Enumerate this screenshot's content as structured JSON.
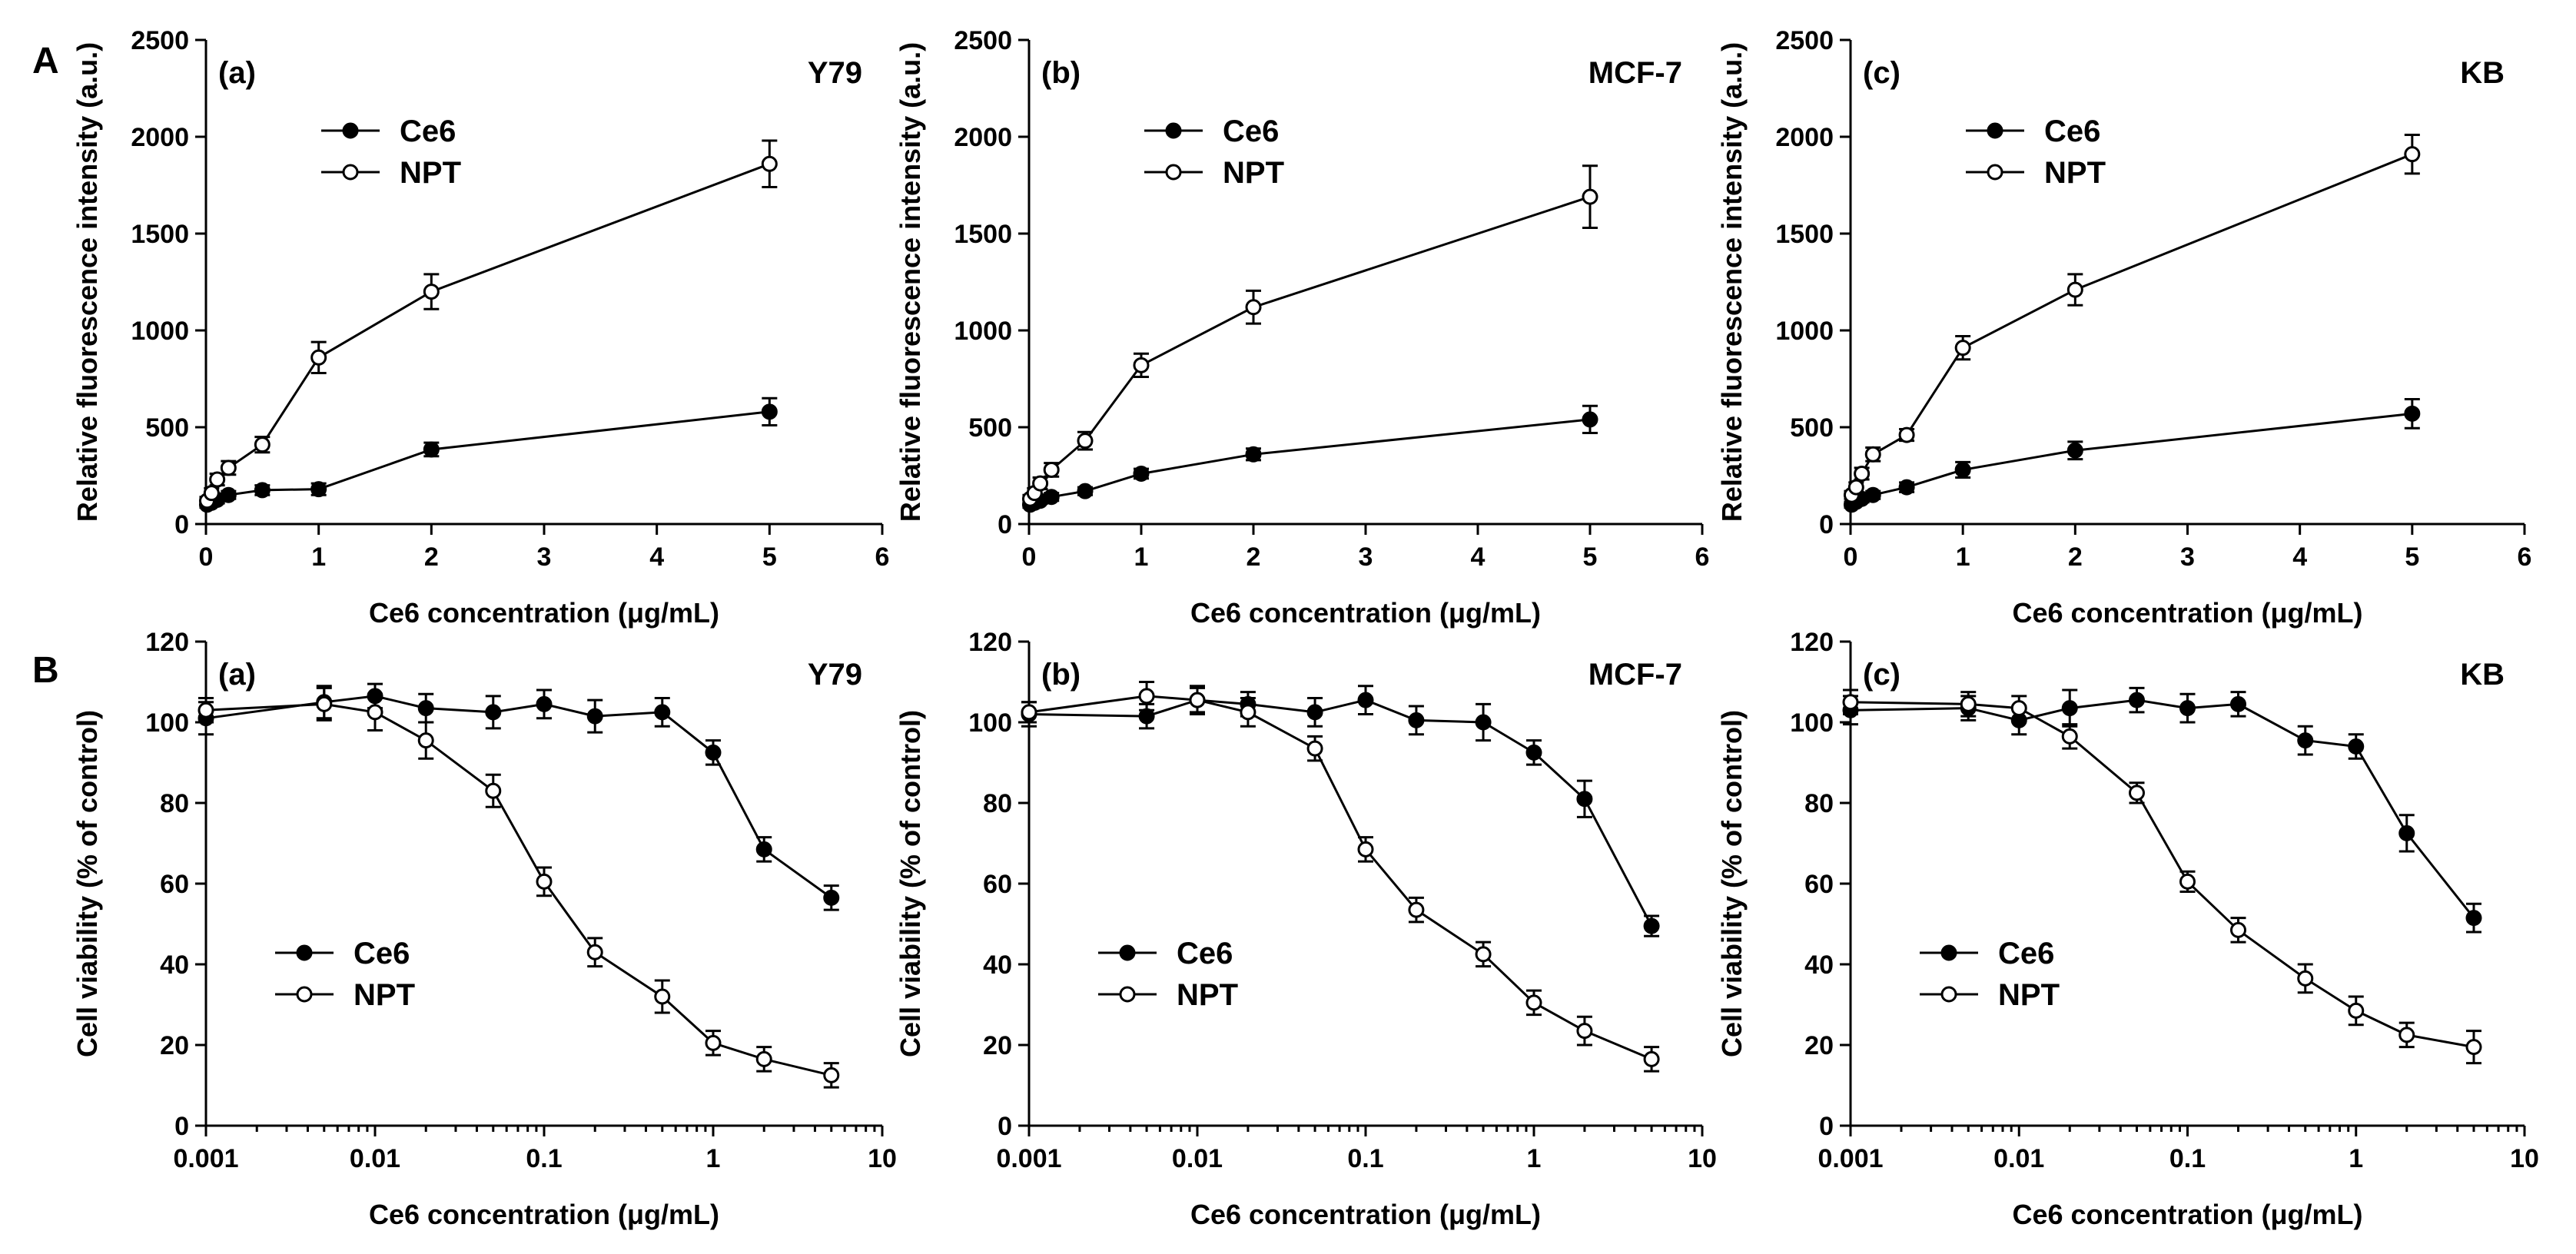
{
  "figure": {
    "section_labels": [
      "A",
      "B"
    ]
  },
  "chart_data": [
    {
      "id": "A-a",
      "type": "line",
      "section": "A",
      "panel_label": "(a)",
      "cell_line": "Y79",
      "xlabel": "Ce6 concentration (μg/mL)",
      "ylabel": "Relative fluorescence intensity (a.u.)",
      "xscale": "linear",
      "xlim": [
        0,
        6
      ],
      "ylim": [
        0,
        2500
      ],
      "xticks": [
        0,
        1,
        2,
        3,
        4,
        5,
        6
      ],
      "yticks": [
        0,
        500,
        1000,
        1500,
        2000,
        2500
      ],
      "legend_position": "top-left",
      "series": [
        {
          "name": "Ce6",
          "marker": "filled-circle",
          "x": [
            0.01,
            0.05,
            0.1,
            0.2,
            0.5,
            1,
            2,
            5
          ],
          "y": [
            100,
            110,
            125,
            150,
            175,
            180,
            385,
            580
          ],
          "err": [
            15,
            15,
            18,
            20,
            25,
            30,
            35,
            70
          ]
        },
        {
          "name": "NPT",
          "marker": "open-circle",
          "x": [
            0.01,
            0.05,
            0.1,
            0.2,
            0.5,
            1,
            2,
            5
          ],
          "y": [
            120,
            160,
            230,
            290,
            410,
            860,
            1200,
            1860
          ],
          "err": [
            20,
            25,
            30,
            35,
            40,
            80,
            90,
            120
          ]
        }
      ]
    },
    {
      "id": "A-b",
      "type": "line",
      "section": "A",
      "panel_label": "(b)",
      "cell_line": "MCF-7",
      "xlabel": "Ce6 concentration (μg/mL)",
      "ylabel": "Relative fluorescence intensity (a.u.)",
      "xscale": "linear",
      "xlim": [
        0,
        6
      ],
      "ylim": [
        0,
        2500
      ],
      "xticks": [
        0,
        1,
        2,
        3,
        4,
        5,
        6
      ],
      "yticks": [
        0,
        500,
        1000,
        1500,
        2000,
        2500
      ],
      "legend_position": "top-left",
      "series": [
        {
          "name": "Ce6",
          "marker": "filled-circle",
          "x": [
            0.01,
            0.05,
            0.1,
            0.2,
            0.5,
            1,
            2,
            5
          ],
          "y": [
            100,
            110,
            120,
            140,
            170,
            260,
            360,
            540
          ],
          "err": [
            15,
            15,
            15,
            20,
            20,
            25,
            30,
            70
          ]
        },
        {
          "name": "NPT",
          "marker": "open-circle",
          "x": [
            0.01,
            0.05,
            0.1,
            0.2,
            0.5,
            1,
            2,
            5
          ],
          "y": [
            130,
            160,
            210,
            280,
            430,
            820,
            1120,
            1690
          ],
          "err": [
            20,
            25,
            30,
            35,
            45,
            60,
            85,
            160
          ]
        }
      ]
    },
    {
      "id": "A-c",
      "type": "line",
      "section": "A",
      "panel_label": "(c)",
      "cell_line": "KB",
      "xlabel": "Ce6 concentration (μg/mL)",
      "ylabel": "Relative fluorescence intensity (a.u.)",
      "xscale": "linear",
      "xlim": [
        0,
        6
      ],
      "ylim": [
        0,
        2500
      ],
      "xticks": [
        0,
        1,
        2,
        3,
        4,
        5,
        6
      ],
      "yticks": [
        0,
        500,
        1000,
        1500,
        2000,
        2500
      ],
      "legend_position": "top-left",
      "series": [
        {
          "name": "Ce6",
          "marker": "filled-circle",
          "x": [
            0.01,
            0.05,
            0.1,
            0.2,
            0.5,
            1,
            2,
            5
          ],
          "y": [
            100,
            115,
            130,
            150,
            190,
            280,
            380,
            570
          ],
          "err": [
            15,
            15,
            18,
            20,
            25,
            40,
            45,
            75
          ]
        },
        {
          "name": "NPT",
          "marker": "open-circle",
          "x": [
            0.01,
            0.05,
            0.1,
            0.2,
            0.5,
            1,
            2,
            5
          ],
          "y": [
            150,
            190,
            260,
            360,
            460,
            910,
            1210,
            1910
          ],
          "err": [
            20,
            25,
            30,
            35,
            30,
            60,
            80,
            100
          ]
        }
      ]
    },
    {
      "id": "B-a",
      "type": "line",
      "section": "B",
      "panel_label": "(a)",
      "cell_line": "Y79",
      "xlabel": "Ce6 concentration (μg/mL)",
      "ylabel": "Cell viability (% of control)",
      "xscale": "log",
      "xlim": [
        0.001,
        10
      ],
      "ylim": [
        0,
        120
      ],
      "xticks": [
        0.001,
        0.01,
        0.1,
        1,
        10
      ],
      "xtick_labels": [
        "0.001",
        "0.01",
        "0.1",
        "1",
        "10"
      ],
      "yticks": [
        0,
        20,
        40,
        60,
        80,
        100,
        120
      ],
      "legend_position": "lower-left",
      "series": [
        {
          "name": "Ce6",
          "marker": "filled-circle",
          "x": [
            0.001,
            0.005,
            0.01,
            0.02,
            0.05,
            0.1,
            0.2,
            0.5,
            1,
            2,
            5
          ],
          "y": [
            101,
            105,
            106.5,
            103.5,
            102.5,
            104.5,
            101.5,
            102.5,
            92.5,
            68.5,
            56.5
          ],
          "err": [
            4,
            4,
            3,
            3.5,
            4,
            3.5,
            4,
            3.5,
            3,
            3,
            3
          ]
        },
        {
          "name": "NPT",
          "marker": "open-circle",
          "x": [
            0.001,
            0.005,
            0.01,
            0.02,
            0.05,
            0.1,
            0.2,
            0.5,
            1,
            2,
            5
          ],
          "y": [
            103,
            104.5,
            102.5,
            95.5,
            83,
            60.5,
            43,
            32,
            20.5,
            16.5,
            12.5
          ],
          "err": [
            3,
            4,
            4.5,
            4.5,
            4,
            3.5,
            3.5,
            4,
            3,
            3,
            3
          ]
        }
      ]
    },
    {
      "id": "B-b",
      "type": "line",
      "section": "B",
      "panel_label": "(b)",
      "cell_line": "MCF-7",
      "xlabel": "Ce6 concentration (μg/mL)",
      "ylabel": "Cell viability (% of control)",
      "xscale": "log",
      "xlim": [
        0.001,
        10
      ],
      "ylim": [
        0,
        120
      ],
      "xticks": [
        0.001,
        0.01,
        0.1,
        1,
        10
      ],
      "xtick_labels": [
        "0.001",
        "0.01",
        "0.1",
        "1",
        "10"
      ],
      "yticks": [
        0,
        20,
        40,
        60,
        80,
        100,
        120
      ],
      "legend_position": "lower-left",
      "series": [
        {
          "name": "Ce6",
          "marker": "filled-circle",
          "x": [
            0.001,
            0.005,
            0.01,
            0.02,
            0.05,
            0.1,
            0.2,
            0.5,
            1,
            2,
            5
          ],
          "y": [
            102,
            101.5,
            105.5,
            104.5,
            102.5,
            105.5,
            100.5,
            100,
            92.5,
            81,
            49.5
          ],
          "err": [
            3,
            3,
            3,
            3,
            3.5,
            3.5,
            3.5,
            4.5,
            3,
            4.5,
            2.5
          ]
        },
        {
          "name": "NPT",
          "marker": "open-circle",
          "x": [
            0.001,
            0.005,
            0.01,
            0.02,
            0.05,
            0.1,
            0.2,
            0.5,
            1,
            2,
            5
          ],
          "y": [
            102.5,
            106.5,
            105.5,
            102.5,
            93.5,
            68.5,
            53.5,
            42.5,
            30.5,
            23.5,
            16.5
          ],
          "err": [
            2.5,
            3.5,
            3.5,
            3.5,
            3,
            3,
            3,
            3,
            3,
            3.5,
            3
          ]
        }
      ]
    },
    {
      "id": "B-c",
      "type": "line",
      "section": "B",
      "panel_label": "(c)",
      "cell_line": "KB",
      "xlabel": "Ce6 concentration (μg/mL)",
      "ylabel": "Cell viability (% of control)",
      "xscale": "log",
      "xlim": [
        0.001,
        10
      ],
      "ylim": [
        0,
        120
      ],
      "xticks": [
        0.001,
        0.01,
        0.1,
        1,
        10
      ],
      "xtick_labels": [
        "0.001",
        "0.01",
        "0.1",
        "1",
        "10"
      ],
      "yticks": [
        0,
        20,
        40,
        60,
        80,
        100,
        120
      ],
      "legend_position": "lower-left",
      "series": [
        {
          "name": "Ce6",
          "marker": "filled-circle",
          "x": [
            0.001,
            0.005,
            0.01,
            0.02,
            0.05,
            0.1,
            0.2,
            0.5,
            1,
            2,
            5
          ],
          "y": [
            103,
            103.5,
            100.5,
            103.5,
            105.5,
            103.5,
            104.5,
            95.5,
            94,
            72.5,
            51.5
          ],
          "err": [
            3.5,
            3,
            3.5,
            4.5,
            3,
            3.5,
            3,
            3.5,
            3,
            4.5,
            3.5
          ]
        },
        {
          "name": "NPT",
          "marker": "open-circle",
          "x": [
            0.001,
            0.005,
            0.01,
            0.02,
            0.05,
            0.1,
            0.2,
            0.5,
            1,
            2,
            5
          ],
          "y": [
            105,
            104.5,
            103.5,
            96.5,
            82.5,
            60.5,
            48.5,
            36.5,
            28.5,
            22.5,
            19.5
          ],
          "err": [
            3,
            3,
            3,
            3,
            2.5,
            2.5,
            3,
            3.5,
            3.5,
            3,
            4
          ]
        }
      ]
    }
  ]
}
